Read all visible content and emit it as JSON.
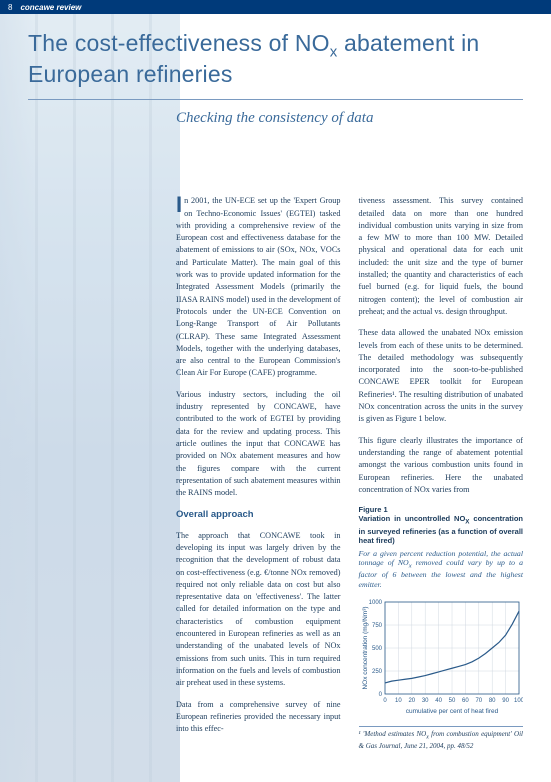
{
  "header": {
    "page_number": "8",
    "review_label": "concawe review"
  },
  "title_html": "The cost-effectiveness of NO<sub>x</sub> abatement in European refineries",
  "subtitle": "Checking the consistency of data",
  "col1": {
    "p1": "n 2001, the UN-ECE set up the 'Expert Group on Techno-Economic Issues' (EGTEI) tasked with providing a comprehensive review of the European cost and effectiveness database for the abatement of emissions to air (SOx, NOx, VOCs and Particulate Matter). The main goal of this work was to provide updated information for the Integrated Assessment Models (primarily the IIASA RAINS model) used in the development of Protocols under the UN-ECE Convention on Long-Range Transport of Air Pollutants (CLRAP). These same Integrated Assessment Models, together with the underlying databases, are also central to the European Commission's Clean Air For Europe (CAFE) programme.",
    "p2": "Various industry sectors, including the oil industry represented by CONCAWE, have contributed to the work of EGTEI by providing data for the review and updating process. This article outlines the input that CONCAWE has provided on NOx abatement measures and how the figures compare with the current representation of such abatement measures within the RAINS model.",
    "section_head": "Overall approach",
    "p3": "The approach that CONCAWE took in developing its input was largely driven by the recognition that the development of robust data on cost-effectiveness (e.g. €/tonne NOx removed) required not only reliable data on cost but also representative data on 'effectiveness'. The latter called for detailed information on the type and characteristics of combustion equipment encountered in European refineries as well as an understanding of the unabated levels of NOx emissions from such units. This in turn required information on the fuels and levels of combustion air preheat used in these systems.",
    "p4": "Data from a comprehensive survey of nine European refineries provided the necessary input into this effec-"
  },
  "col2": {
    "p1": "tiveness assessment. This survey contained detailed data on more than one hundred individual combustion units varying in size from a few MW to more than 100 MW. Detailed physical and operational data for each unit included: the unit size and the type of burner installed; the quantity and characteristics of each fuel burned (e.g. for liquid fuels, the bound nitrogen content); the level of combustion air preheat; and the actual vs. design throughput.",
    "p2": "These data allowed the unabated NOx emission levels from each of these units to be determined. The detailed methodology was subsequently incorporated into the soon-to-be-published CONCAWE EPER toolkit for European Refineries¹. The resulting distribution of unabated NOx concentration across the units in the survey is given as Figure 1 below.",
    "p3": "This figure clearly illustrates the importance of understanding the range of abatement potential amongst the various combustion units found in European refineries. Here the unabated concentration of NOx varies from"
  },
  "figure": {
    "label": "Figure 1",
    "caption_html": "Variation in uncontrolled NO<sub>X</sub> concentration in surveyed refineries (as a function of overall heat fired)",
    "note_html": "For a given percent reduction potential, the actual tonnage of NO<sub>x</sub> removed could vary by up to a factor of 6 between the lowest and the highest emitter.",
    "chart": {
      "type": "line",
      "ylabel_html": "NOx concentration (mg/Nm³)",
      "xlabel": "cumulative per cent of heat fired",
      "xlim": [
        0,
        100
      ],
      "ylim": [
        0,
        1000
      ],
      "ytick_step": 250,
      "xtick_step": 10,
      "line_color": "#2a5a8a",
      "grid_color": "#d0d8e0",
      "background_color": "#ffffff",
      "axis_color": "#2a5a8a",
      "line_width": 1.2,
      "label_fontsize": 6.5,
      "tick_fontsize": 6,
      "x": [
        0,
        5,
        10,
        15,
        20,
        25,
        30,
        35,
        40,
        45,
        50,
        55,
        60,
        65,
        70,
        75,
        80,
        85,
        90,
        95,
        100
      ],
      "y": [
        120,
        140,
        150,
        160,
        170,
        185,
        200,
        220,
        240,
        260,
        280,
        300,
        320,
        350,
        390,
        440,
        500,
        560,
        640,
        760,
        900
      ]
    }
  },
  "footnote_html": "¹ 'Method estimates NO<sub>x</sub> from combustion equipment' Oil &amp; Gas Journal, June 21, 2004, pp. 48/52"
}
